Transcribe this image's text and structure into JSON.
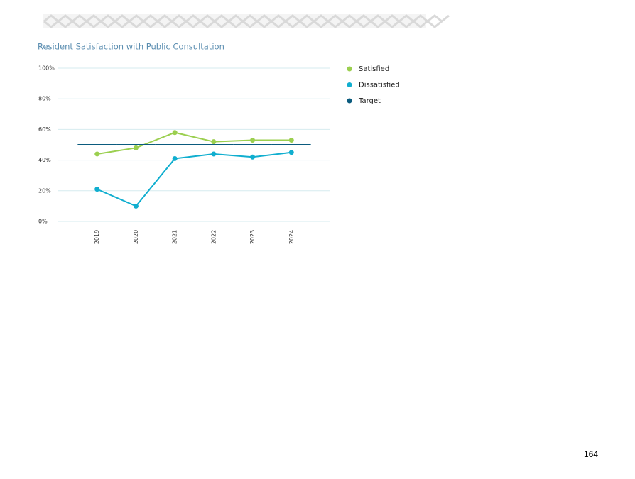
{
  "chart_data": {
    "type": "line",
    "title": "Resident Satisfaction with Public Consultation",
    "categories": [
      "2019",
      "2020",
      "2021",
      "2022",
      "2023",
      "2024"
    ],
    "series": [
      {
        "name": "Satisfied",
        "color": "#9bcf4f",
        "values": [
          44,
          48,
          58,
          52,
          53,
          53
        ]
      },
      {
        "name": "Dissatisfied",
        "color": "#10aecf",
        "values": [
          21,
          10,
          41,
          44,
          42,
          45
        ]
      },
      {
        "name": "Target",
        "color": "#0b5b7e",
        "values": [
          50,
          50,
          50,
          50,
          50,
          50
        ]
      }
    ],
    "ylim": [
      0,
      100
    ],
    "yticks": [
      {
        "value": 0,
        "label": "0%"
      },
      {
        "value": 20,
        "label": "20%"
      },
      {
        "value": 40,
        "label": "40%"
      },
      {
        "value": 60,
        "label": "60%"
      },
      {
        "value": 80,
        "label": "80%"
      },
      {
        "value": 100,
        "label": "100%"
      }
    ],
    "grid": true,
    "legend": "right"
  },
  "page_number": "164"
}
